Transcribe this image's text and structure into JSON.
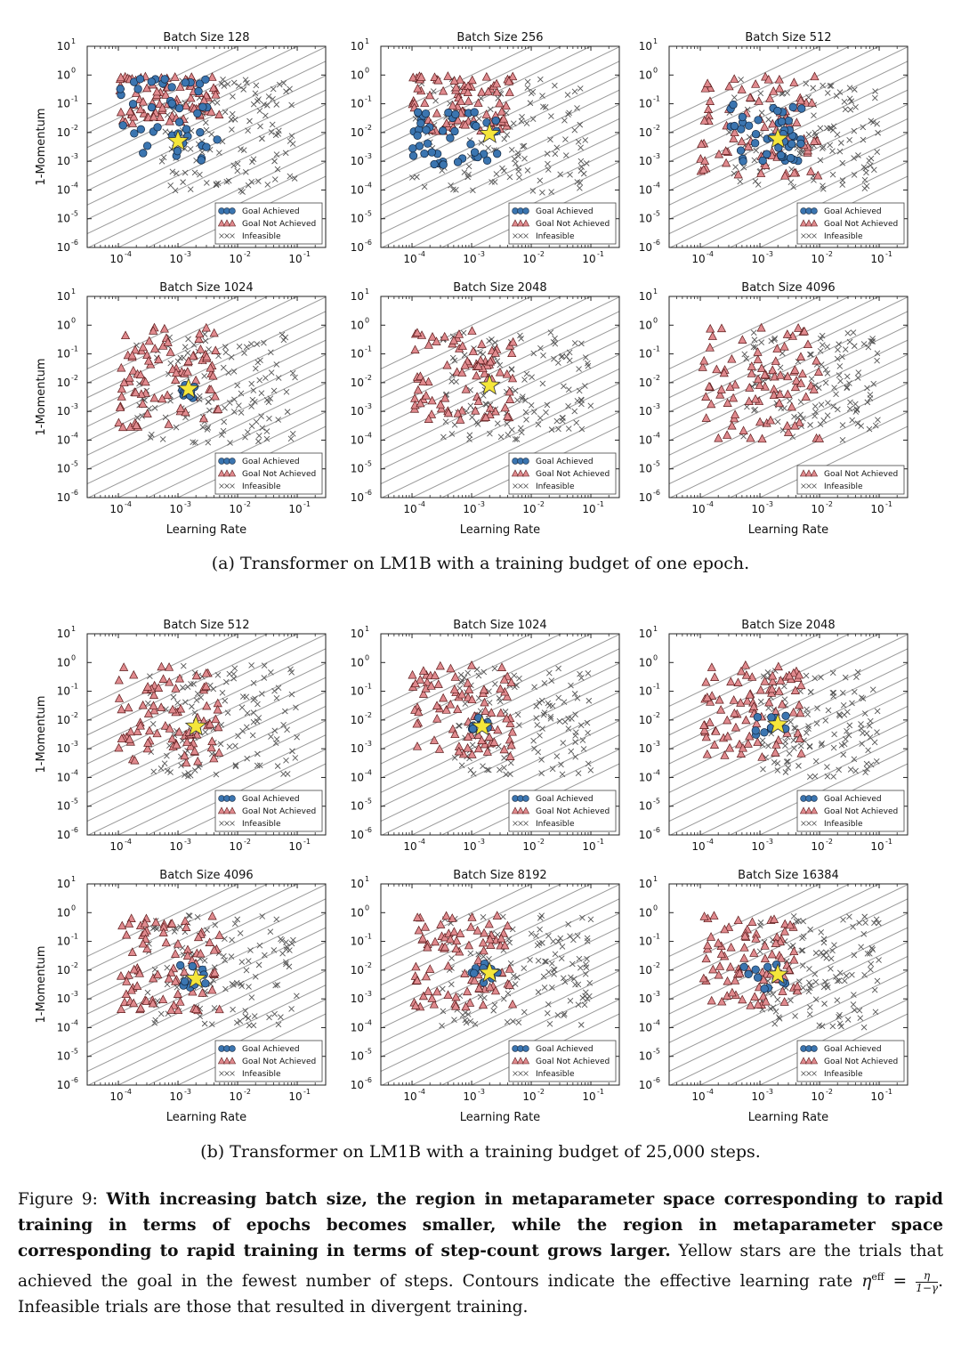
{
  "figure": {
    "caption_a": "(a) Transformer on LM1B with a training budget of one epoch.",
    "caption_b": "(b) Transformer on LM1B with a training budget of 25,000 steps.",
    "caption": {
      "label": "Figure 9:",
      "bold": "With increasing batch size, the region in metaparameter space corresponding to rapid training in terms of epochs becomes smaller, while the region in metaparameter space corresponding to rapid training in terms of step-count grows larger.",
      "rest_1": "Yellow stars are the trials that achieved the goal in the fewest number of steps. Contours indicate the effective learning rate",
      "eta_eff": "η",
      "eff_sup": "eff",
      "equals": "=",
      "frac_num": "η",
      "frac_den": "1−γ",
      "rest_2": ". Infeasible trials are those that resulted in divergent training."
    }
  },
  "chart_data": [
    {
      "type": "scatter",
      "group": "a",
      "title": "Batch Size 128",
      "xlabel": "",
      "ylabel": "1-Momentum",
      "x_scale": "log",
      "y_scale": "log",
      "xlim": [
        3e-05,
        0.3
      ],
      "ylim": [
        1e-06,
        10
      ],
      "legend": [
        "Goal Achieved",
        "Goal Not Achieved",
        "Infeasible"
      ],
      "legend_loc": "lower-right",
      "best_trial": {
        "learning_rate": 0.001,
        "one_minus_momentum": 0.005
      },
      "summary": {
        "goal_achieved": {
          "learning_rate": [
            0.0001,
            0.005
          ],
          "one_minus_momentum": [
            0.0006,
            0.8
          ]
        },
        "goal_not_achieved": {
          "learning_rate": [
            0.0001,
            0.005
          ],
          "one_minus_momentum": [
            0.02,
            0.9
          ]
        },
        "infeasible": {
          "learning_rate": [
            0.0005,
            0.1
          ],
          "one_minus_momentum": [
            8e-05,
            0.8
          ]
        }
      }
    },
    {
      "type": "scatter",
      "group": "a",
      "title": "Batch Size 256",
      "xlabel": "",
      "ylabel": "",
      "x_scale": "log",
      "y_scale": "log",
      "xlim": [
        3e-05,
        0.3
      ],
      "ylim": [
        1e-06,
        10
      ],
      "legend": [
        "Goal Achieved",
        "Goal Not Achieved",
        "Infeasible"
      ],
      "legend_loc": "lower-right",
      "best_trial": {
        "learning_rate": 0.002,
        "one_minus_momentum": 0.009
      },
      "summary": {
        "goal_achieved": {
          "learning_rate": [
            0.0001,
            0.003
          ],
          "one_minus_momentum": [
            0.0007,
            0.06
          ]
        },
        "goal_not_achieved": {
          "learning_rate": [
            0.0001,
            0.005
          ],
          "one_minus_momentum": [
            0.01,
            0.9
          ]
        },
        "infeasible": {
          "learning_rate": [
            0.0001,
            0.1
          ],
          "one_minus_momentum": [
            8e-05,
            0.8
          ]
        }
      }
    },
    {
      "type": "scatter",
      "group": "a",
      "title": "Batch Size 512",
      "xlabel": "",
      "ylabel": "",
      "x_scale": "log",
      "y_scale": "log",
      "xlim": [
        3e-05,
        0.3
      ],
      "ylim": [
        1e-06,
        10
      ],
      "legend": [
        "Goal Achieved",
        "Goal Not Achieved",
        "Infeasible"
      ],
      "legend_loc": "lower-right",
      "best_trial": {
        "learning_rate": 0.002,
        "one_minus_momentum": 0.006
      },
      "summary": {
        "goal_achieved": {
          "learning_rate": [
            0.0003,
            0.005
          ],
          "one_minus_momentum": [
            0.001,
            0.1
          ]
        },
        "goal_not_achieved": {
          "learning_rate": [
            0.0001,
            0.01
          ],
          "one_minus_momentum": [
            0.0003,
            0.9
          ]
        },
        "infeasible": {
          "learning_rate": [
            0.0003,
            0.1
          ],
          "one_minus_momentum": [
            8e-05,
            0.8
          ]
        }
      }
    },
    {
      "type": "scatter",
      "group": "a",
      "title": "Batch Size 1024",
      "xlabel": "Learning Rate",
      "ylabel": "1-Momentum",
      "x_scale": "log",
      "y_scale": "log",
      "xlim": [
        3e-05,
        0.3
      ],
      "ylim": [
        1e-06,
        10
      ],
      "legend": [
        "Goal Achieved",
        "Goal Not Achieved",
        "Infeasible"
      ],
      "legend_loc": "lower-right",
      "best_trial": {
        "learning_rate": 0.0015,
        "one_minus_momentum": 0.006
      },
      "summary": {
        "goal_achieved": {
          "learning_rate": [
            0.001,
            0.002
          ],
          "one_minus_momentum": [
            0.002,
            0.01
          ]
        },
        "goal_not_achieved": {
          "learning_rate": [
            0.0001,
            0.005
          ],
          "one_minus_momentum": [
            0.0002,
            0.8
          ]
        },
        "infeasible": {
          "learning_rate": [
            0.0002,
            0.1
          ],
          "one_minus_momentum": [
            8e-05,
            0.5
          ]
        }
      }
    },
    {
      "type": "scatter",
      "group": "a",
      "title": "Batch Size 2048",
      "xlabel": "Learning Rate",
      "ylabel": "",
      "x_scale": "log",
      "y_scale": "log",
      "xlim": [
        3e-05,
        0.3
      ],
      "ylim": [
        1e-06,
        10
      ],
      "legend": [
        "Goal Achieved",
        "Goal Not Achieved",
        "Infeasible"
      ],
      "legend_loc": "lower-right",
      "best_trial": {
        "learning_rate": 0.002,
        "one_minus_momentum": 0.008
      },
      "summary": {
        "goal_achieved": {
          "learning_rate": [
            0.002,
            0.002
          ],
          "one_minus_momentum": [
            0.008,
            0.008
          ]
        },
        "goal_not_achieved": {
          "learning_rate": [
            0.0001,
            0.005
          ],
          "one_minus_momentum": [
            0.0005,
            0.8
          ]
        },
        "infeasible": {
          "learning_rate": [
            0.0003,
            0.1
          ],
          "one_minus_momentum": [
            0.0001,
            0.6
          ]
        }
      }
    },
    {
      "type": "scatter",
      "group": "a",
      "title": "Batch Size 4096",
      "xlabel": "Learning Rate",
      "ylabel": "",
      "x_scale": "log",
      "y_scale": "log",
      "xlim": [
        3e-05,
        0.3
      ],
      "ylim": [
        1e-06,
        10
      ],
      "legend": [
        "Goal Not Achieved",
        "Infeasible"
      ],
      "legend_loc": "lower-right",
      "best_trial": null,
      "summary": {
        "goal_not_achieved": {
          "learning_rate": [
            0.0001,
            0.01
          ],
          "one_minus_momentum": [
            0.0001,
            0.8
          ]
        },
        "infeasible": {
          "learning_rate": [
            0.0005,
            0.1
          ],
          "one_minus_momentum": [
            0.0001,
            0.7
          ]
        }
      }
    },
    {
      "type": "scatter",
      "group": "b",
      "title": "Batch Size 512",
      "xlabel": "",
      "ylabel": "1-Momentum",
      "x_scale": "log",
      "y_scale": "log",
      "xlim": [
        3e-05,
        0.3
      ],
      "ylim": [
        1e-06,
        10
      ],
      "legend": [
        "Goal Achieved",
        "Goal Not Achieved",
        "Infeasible"
      ],
      "legend_loc": "lower-right",
      "best_trial": {
        "learning_rate": 0.002,
        "one_minus_momentum": 0.006
      },
      "summary": {
        "goal_not_achieved": {
          "learning_rate": [
            0.0001,
            0.005
          ],
          "one_minus_momentum": [
            0.0003,
            0.8
          ]
        },
        "infeasible": {
          "learning_rate": [
            0.0003,
            0.1
          ],
          "one_minus_momentum": [
            0.0001,
            0.8
          ]
        }
      }
    },
    {
      "type": "scatter",
      "group": "b",
      "title": "Batch Size 1024",
      "xlabel": "",
      "ylabel": "",
      "x_scale": "log",
      "y_scale": "log",
      "xlim": [
        3e-05,
        0.3
      ],
      "ylim": [
        1e-06,
        10
      ],
      "legend": [
        "Goal Achieved",
        "Goal Not Achieved",
        "Infeasible"
      ],
      "legend_loc": "lower-right",
      "best_trial": {
        "learning_rate": 0.0015,
        "one_minus_momentum": 0.006
      },
      "summary": {
        "goal_achieved": {
          "learning_rate": [
            0.001,
            0.002
          ],
          "one_minus_momentum": [
            0.004,
            0.012
          ]
        },
        "goal_not_achieved": {
          "learning_rate": [
            0.0001,
            0.005
          ],
          "one_minus_momentum": [
            0.0005,
            0.8
          ]
        },
        "infeasible": {
          "learning_rate": [
            0.0005,
            0.1
          ],
          "one_minus_momentum": [
            0.0001,
            0.7
          ]
        }
      }
    },
    {
      "type": "scatter",
      "group": "b",
      "title": "Batch Size 2048",
      "xlabel": "",
      "ylabel": "",
      "x_scale": "log",
      "y_scale": "log",
      "xlim": [
        3e-05,
        0.3
      ],
      "ylim": [
        1e-06,
        10
      ],
      "legend": [
        "Goal Achieved",
        "Goal Not Achieved",
        "Infeasible"
      ],
      "legend_loc": "lower-right",
      "best_trial": {
        "learning_rate": 0.002,
        "one_minus_momentum": 0.007
      },
      "summary": {
        "goal_achieved": {
          "learning_rate": [
            0.0008,
            0.003
          ],
          "one_minus_momentum": [
            0.003,
            0.015
          ]
        },
        "goal_not_achieved": {
          "learning_rate": [
            0.0001,
            0.005
          ],
          "one_minus_momentum": [
            0.0005,
            0.8
          ]
        },
        "infeasible": {
          "learning_rate": [
            0.001,
            0.1
          ],
          "one_minus_momentum": [
            0.0001,
            0.6
          ]
        }
      }
    },
    {
      "type": "scatter",
      "group": "b",
      "title": "Batch Size 4096",
      "xlabel": "Learning Rate",
      "ylabel": "1-Momentum",
      "x_scale": "log",
      "y_scale": "log",
      "xlim": [
        3e-05,
        0.3
      ],
      "ylim": [
        1e-06,
        10
      ],
      "legend": [
        "Goal Achieved",
        "Goal Not Achieved",
        "Infeasible"
      ],
      "legend_loc": "lower-right",
      "best_trial": {
        "learning_rate": 0.002,
        "one_minus_momentum": 0.005
      },
      "summary": {
        "goal_achieved": {
          "learning_rate": [
            0.001,
            0.003
          ],
          "one_minus_momentum": [
            0.002,
            0.02
          ]
        },
        "goal_not_achieved": {
          "learning_rate": [
            0.0001,
            0.005
          ],
          "one_minus_momentum": [
            0.0003,
            0.8
          ]
        },
        "infeasible": {
          "learning_rate": [
            0.0003,
            0.1
          ],
          "one_minus_momentum": [
            0.0001,
            0.8
          ]
        }
      }
    },
    {
      "type": "scatter",
      "group": "b",
      "title": "Batch Size 8192",
      "xlabel": "Learning Rate",
      "ylabel": "",
      "x_scale": "log",
      "y_scale": "log",
      "xlim": [
        3e-05,
        0.3
      ],
      "ylim": [
        1e-06,
        10
      ],
      "legend": [
        "Goal Achieved",
        "Goal Not Achieved",
        "Infeasible"
      ],
      "legend_loc": "lower-right",
      "best_trial": {
        "learning_rate": 0.002,
        "one_minus_momentum": 0.008
      },
      "summary": {
        "goal_achieved": {
          "learning_rate": [
            0.001,
            0.004
          ],
          "one_minus_momentum": [
            0.003,
            0.02
          ]
        },
        "goal_not_achieved": {
          "learning_rate": [
            0.0001,
            0.005
          ],
          "one_minus_momentum": [
            0.0005,
            0.8
          ]
        },
        "infeasible": {
          "learning_rate": [
            0.0003,
            0.1
          ],
          "one_minus_momentum": [
            0.0001,
            0.8
          ]
        }
      }
    },
    {
      "type": "scatter",
      "group": "b",
      "title": "Batch Size 16384",
      "xlabel": "Learning Rate",
      "ylabel": "",
      "x_scale": "log",
      "y_scale": "log",
      "xlim": [
        3e-05,
        0.3
      ],
      "ylim": [
        1e-06,
        10
      ],
      "legend": [
        "Goal Achieved",
        "Goal Not Achieved",
        "Infeasible"
      ],
      "legend_loc": "lower-right",
      "best_trial": {
        "learning_rate": 0.002,
        "one_minus_momentum": 0.007
      },
      "summary": {
        "goal_achieved": {
          "learning_rate": [
            0.0005,
            0.003
          ],
          "one_minus_momentum": [
            0.002,
            0.02
          ]
        },
        "goal_not_achieved": {
          "learning_rate": [
            0.0001,
            0.005
          ],
          "one_minus_momentum": [
            0.0005,
            0.8
          ]
        },
        "infeasible": {
          "learning_rate": [
            0.001,
            0.1
          ],
          "one_minus_momentum": [
            0.0001,
            0.8
          ]
        }
      }
    }
  ],
  "styles": {
    "goal_achieved": "#3b75b0",
    "goal_not_achieved": "#e08a8e",
    "infeasible": "#555555",
    "star": "#f5e63a",
    "contour": "#9a9a9a",
    "contour_dashed": "#b88585"
  }
}
